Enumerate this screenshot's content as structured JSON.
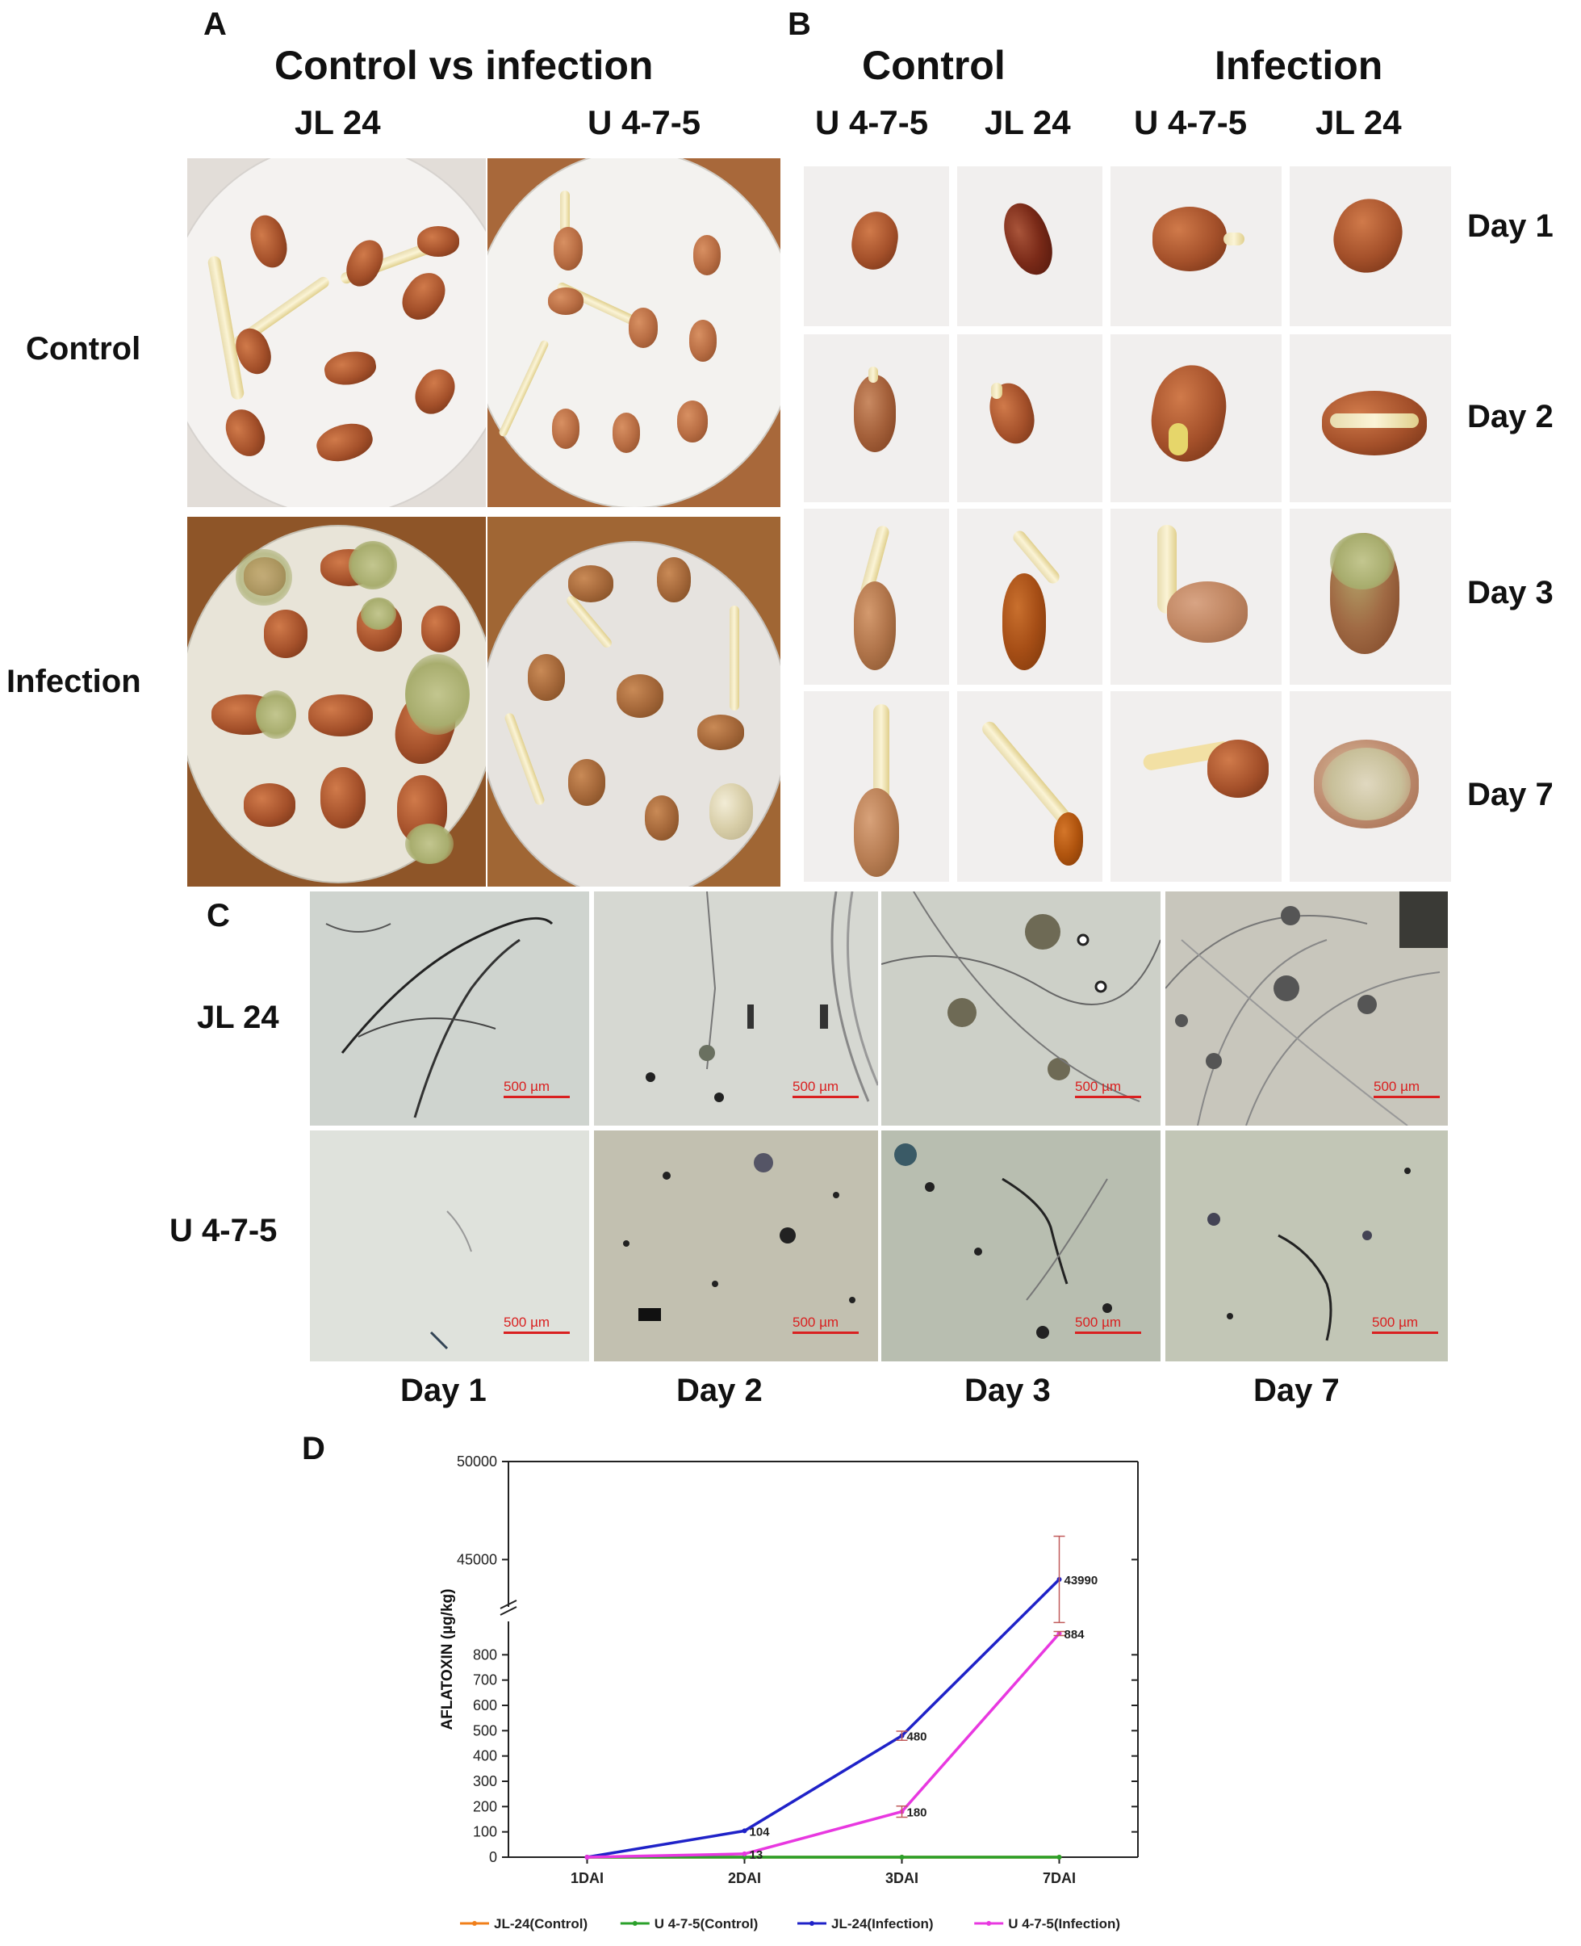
{
  "panel_a": {
    "letter": "A",
    "title": "Control vs infection",
    "columns": [
      "JL 24",
      "U 4-7-5"
    ],
    "rows": [
      "Control",
      "Infection"
    ]
  },
  "panel_b": {
    "letter": "B",
    "groups": [
      "Control",
      "Infection"
    ],
    "columns": [
      "U 4-7-5",
      "JL 24",
      "U 4-7-5",
      "JL 24"
    ],
    "rows": [
      "Day 1",
      "Day 2",
      "Day 3",
      "Day 7"
    ]
  },
  "panel_c": {
    "letter": "C",
    "rows": [
      "JL 24",
      "U 4-7-5"
    ],
    "columns": [
      "Day 1",
      "Day 2",
      "Day 3",
      "Day 7"
    ],
    "scale_label": "500 µm"
  },
  "panel_d": {
    "letter": "D"
  },
  "chart_data": {
    "type": "line",
    "title": "",
    "xlabel": "",
    "ylabel": "AFLATOXIN (µg/kg)",
    "categories": [
      "1DAI",
      "2DAI",
      "3DAI",
      "7DAI"
    ],
    "y_axis_break": {
      "lower_range": [
        0,
        900
      ],
      "lower_ticks": [
        "0",
        "100",
        "200",
        "300",
        "400",
        "500",
        "600",
        "700",
        "800"
      ],
      "upper_range": [
        43000,
        50000
      ],
      "upper_ticks": [
        "45000",
        "50000"
      ]
    },
    "series": [
      {
        "name": "JL-24(Control)",
        "color": "#f07f1a",
        "values": [
          0,
          0,
          0,
          0
        ]
      },
      {
        "name": "U 4-7-5(Control)",
        "color": "#2aa02a",
        "values": [
          0,
          0,
          0,
          0
        ]
      },
      {
        "name": "JL-24(Infection)",
        "color": "#1f22c8",
        "values": [
          0,
          104,
          480,
          43990
        ]
      },
      {
        "name": "U 4-7-5(Infection)",
        "color": "#e838e0",
        "values": [
          0,
          13,
          180,
          884
        ]
      }
    ],
    "data_labels": [
      {
        "series": "JL-24(Infection)",
        "category": "2DAI",
        "text": "104"
      },
      {
        "series": "U 4-7-5(Infection)",
        "category": "2DAI",
        "text": "13"
      },
      {
        "series": "JL-24(Infection)",
        "category": "3DAI",
        "text": "480"
      },
      {
        "series": "U 4-7-5(Infection)",
        "category": "3DAI",
        "text": "180"
      },
      {
        "series": "JL-24(Infection)",
        "category": "7DAI",
        "text": "43990"
      },
      {
        "series": "U 4-7-5(Infection)",
        "category": "7DAI",
        "text": "884"
      }
    ],
    "legend_position": "bottom"
  }
}
